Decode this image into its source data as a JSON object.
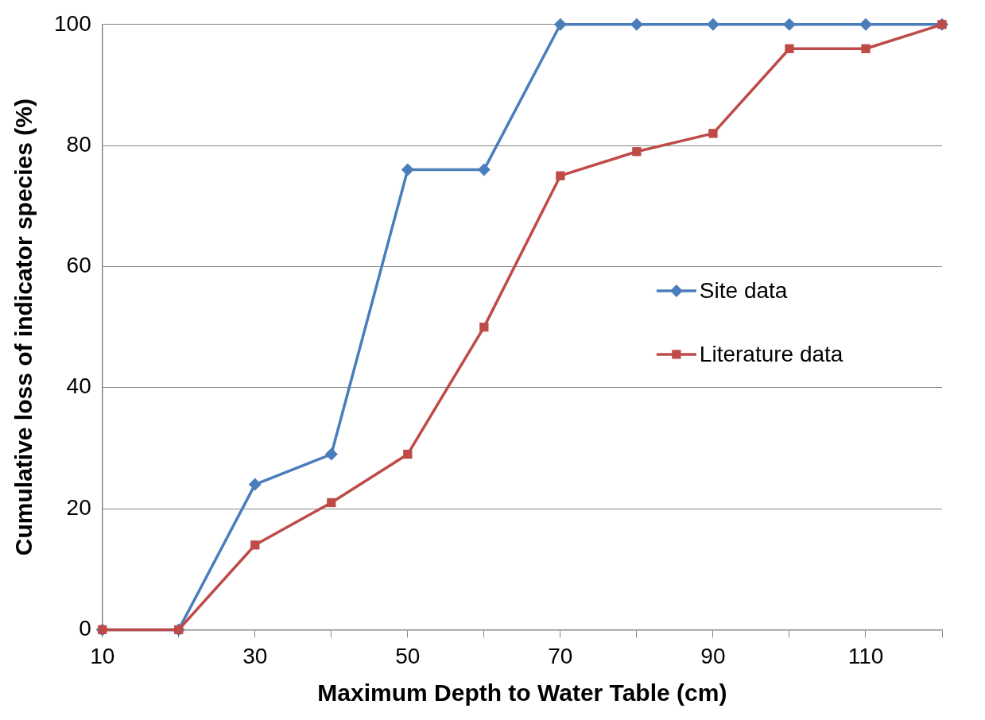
{
  "chart_data": {
    "type": "line",
    "xlabel": "Maximum Depth to Water Table (cm)",
    "ylabel": "Cumulative loss of indicator species (%)",
    "x": [
      10,
      20,
      30,
      40,
      50,
      60,
      70,
      80,
      90,
      100,
      110,
      120
    ],
    "series": [
      {
        "name": "Site data",
        "color": "#4a7ebb",
        "marker": "diamond",
        "values": [
          0,
          0,
          24,
          29,
          76,
          76,
          100,
          100,
          100,
          100,
          100,
          100
        ]
      },
      {
        "name": "Literature data",
        "color": "#be4b48",
        "marker": "square",
        "values": [
          0,
          0,
          14,
          21,
          29,
          50,
          75,
          79,
          82,
          96,
          96,
          100
        ]
      }
    ],
    "xlim": [
      10,
      120
    ],
    "xticks": [
      10,
      {
        "value": 20,
        "label": null
      },
      30,
      {
        "value": 40,
        "label": null
      },
      50,
      {
        "value": 60,
        "label": null
      },
      70,
      {
        "value": 80,
        "label": null
      },
      90,
      {
        "value": 100,
        "label": null
      },
      110,
      {
        "value": 120,
        "label": null
      }
    ],
    "ylim": [
      0,
      100
    ],
    "yticks": [
      0,
      20,
      40,
      60,
      80,
      100
    ],
    "grid": "y",
    "legend": "right",
    "line_style": "solid"
  }
}
